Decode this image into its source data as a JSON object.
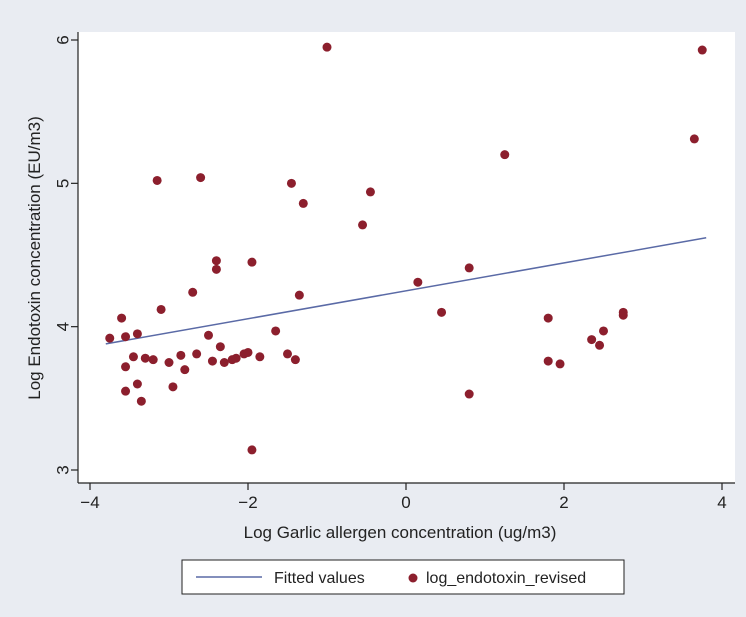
{
  "chart_data": {
    "type": "scatter",
    "xlabel": "Log Garlic allergen concentration (ug/m3)",
    "ylabel": "Log Endotoxin concentration (EU/m3)",
    "xlim": [
      -4,
      4
    ],
    "ylim": [
      3,
      6
    ],
    "x_ticks": [
      -4,
      -2,
      0,
      2,
      4
    ],
    "y_ticks": [
      3,
      4,
      5,
      6
    ],
    "grid": false,
    "legend_position": "bottom",
    "series": [
      {
        "name": "Fitted values",
        "type": "line",
        "color": "#5a6aa6",
        "points": [
          {
            "x": -3.8,
            "y": 3.88
          },
          {
            "x": 3.8,
            "y": 4.62
          }
        ]
      },
      {
        "name": "log_endotoxin_revised",
        "type": "scatter",
        "color": "#8c1f2d",
        "points": [
          {
            "x": -3.75,
            "y": 3.92
          },
          {
            "x": -3.6,
            "y": 4.06
          },
          {
            "x": -3.55,
            "y": 3.93
          },
          {
            "x": -3.55,
            "y": 3.72
          },
          {
            "x": -3.55,
            "y": 3.55
          },
          {
            "x": -3.45,
            "y": 3.79
          },
          {
            "x": -3.4,
            "y": 3.95
          },
          {
            "x": -3.4,
            "y": 3.6
          },
          {
            "x": -3.35,
            "y": 3.48
          },
          {
            "x": -3.3,
            "y": 3.78
          },
          {
            "x": -3.2,
            "y": 3.77
          },
          {
            "x": -3.15,
            "y": 5.02
          },
          {
            "x": -3.1,
            "y": 4.12
          },
          {
            "x": -3.0,
            "y": 3.75
          },
          {
            "x": -2.95,
            "y": 3.58
          },
          {
            "x": -2.85,
            "y": 3.8
          },
          {
            "x": -2.8,
            "y": 3.7
          },
          {
            "x": -2.7,
            "y": 4.24
          },
          {
            "x": -2.65,
            "y": 3.81
          },
          {
            "x": -2.6,
            "y": 5.04
          },
          {
            "x": -2.5,
            "y": 3.94
          },
          {
            "x": -2.45,
            "y": 3.76
          },
          {
            "x": -2.4,
            "y": 4.4
          },
          {
            "x": -2.4,
            "y": 4.46
          },
          {
            "x": -2.35,
            "y": 3.86
          },
          {
            "x": -2.3,
            "y": 3.75
          },
          {
            "x": -2.2,
            "y": 3.77
          },
          {
            "x": -2.15,
            "y": 3.78
          },
          {
            "x": -2.05,
            "y": 3.81
          },
          {
            "x": -2.0,
            "y": 3.82
          },
          {
            "x": -1.95,
            "y": 4.45
          },
          {
            "x": -1.95,
            "y": 3.14
          },
          {
            "x": -1.85,
            "y": 3.79
          },
          {
            "x": -1.65,
            "y": 3.97
          },
          {
            "x": -1.5,
            "y": 3.81
          },
          {
            "x": -1.45,
            "y": 5.0
          },
          {
            "x": -1.4,
            "y": 3.77
          },
          {
            "x": -1.35,
            "y": 4.22
          },
          {
            "x": -1.3,
            "y": 4.86
          },
          {
            "x": -1.0,
            "y": 5.95
          },
          {
            "x": -0.55,
            "y": 4.71
          },
          {
            "x": -0.45,
            "y": 4.94
          },
          {
            "x": 0.15,
            "y": 4.31
          },
          {
            "x": 0.45,
            "y": 4.1
          },
          {
            "x": 0.8,
            "y": 4.41
          },
          {
            "x": 0.8,
            "y": 3.53
          },
          {
            "x": 1.25,
            "y": 5.2
          },
          {
            "x": 1.8,
            "y": 4.06
          },
          {
            "x": 1.8,
            "y": 3.76
          },
          {
            "x": 1.95,
            "y": 3.74
          },
          {
            "x": 2.35,
            "y": 3.91
          },
          {
            "x": 2.45,
            "y": 3.87
          },
          {
            "x": 2.5,
            "y": 3.97
          },
          {
            "x": 2.75,
            "y": 4.08
          },
          {
            "x": 2.75,
            "y": 4.1
          },
          {
            "x": 3.65,
            "y": 5.31
          },
          {
            "x": 3.75,
            "y": 5.93
          }
        ]
      }
    ]
  }
}
